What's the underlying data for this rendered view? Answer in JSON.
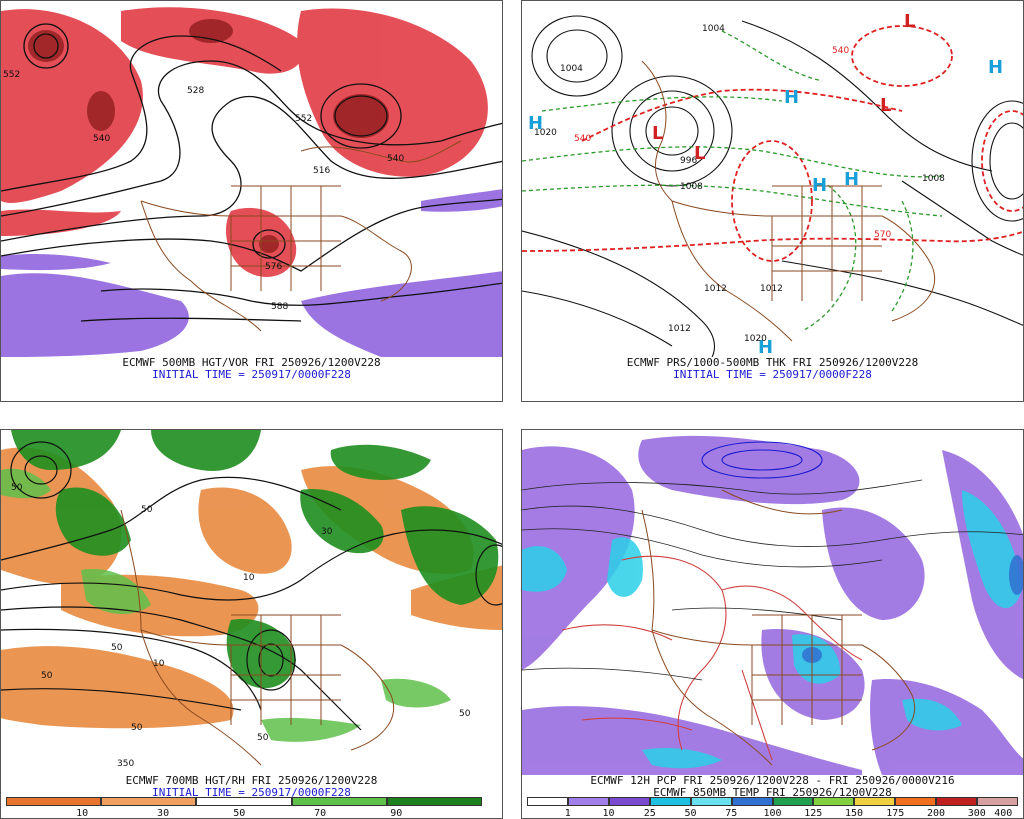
{
  "panels": [
    {
      "caption": "ECMWF 500MB HGT/VOR FRI 250926/1200V228",
      "initial": "INITIAL TIME = 250917/0000F228",
      "contour_labels": [
        "552",
        "540",
        "528",
        "552",
        "540",
        "516",
        "576",
        "588"
      ]
    },
    {
      "caption": "ECMWF PRS/1000-500MB THK FRI 250926/1200V228",
      "initial": "INITIAL TIME = 250917/0000F228",
      "highs": [
        "H",
        "H",
        "H",
        "H",
        "H",
        "H"
      ],
      "lows": [
        "L",
        "L",
        "L",
        "L"
      ],
      "contour_labels": [
        "1004",
        "1004",
        "1020",
        "540",
        "996",
        "1008",
        "1012",
        "1012",
        "1020",
        "1012",
        "1008",
        "570",
        "540"
      ]
    },
    {
      "caption": "ECMWF 700MB HGT/RH FRI 250926/1200V228",
      "initial": "INITIAL TIME = 250917/0000F228",
      "contour_labels": [
        "50",
        "50",
        "30",
        "10",
        "50",
        "50",
        "50",
        "50",
        "50",
        "350",
        "10"
      ],
      "legend": [
        "10",
        "30",
        "50",
        "70",
        "90"
      ]
    },
    {
      "caption": "ECMWF 12H PCP FRI 250926/1200V228 - FRI 250926/0000V216",
      "initial": "ECMWF 850MB TEMP FRI 250926/1200V228",
      "legend": [
        "1",
        "10",
        "25",
        "50",
        "75",
        "100",
        "125",
        "150",
        "175",
        "200",
        "300",
        "400"
      ]
    }
  ],
  "colors": {
    "vorticity_red": "#e0303a",
    "vorticity_dark": "#8b1a1a",
    "vorticity_purple": "#8a5cdc",
    "thickness_red": "#e02020",
    "thickness_green": "#2a9a2a",
    "high_blue": "#1aa0d8",
    "low_red": "#d02020",
    "rh_orange": "#e88a40",
    "rh_green": "#1f8f1f",
    "precip_purple": "#9a6ee0",
    "precip_cyan": "#2ad0e8",
    "border_brown": "#8a4a20"
  },
  "legend_rh_colors": [
    "#e8742e",
    "#f0a060",
    "#ffffff",
    "#5fc04a",
    "#1e7f1e"
  ],
  "legend_pcp_colors": [
    "#ffffff",
    "#a080e8",
    "#7a4ad0",
    "#1ec0e0",
    "#68e0f0",
    "#3070d0",
    "#20a050",
    "#80d040",
    "#f0d040",
    "#f07020",
    "#c02020",
    "#d8a0a0"
  ]
}
